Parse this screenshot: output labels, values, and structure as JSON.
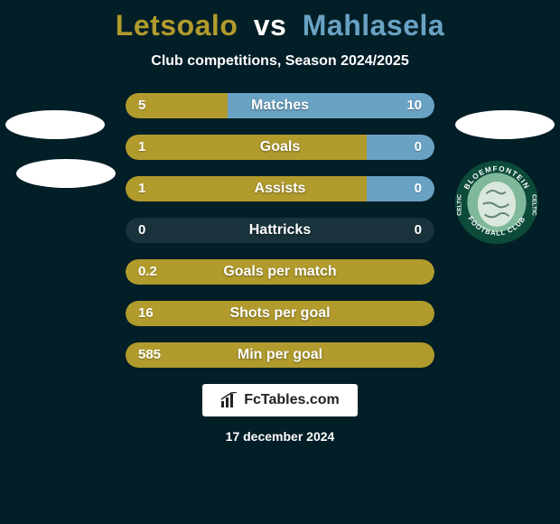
{
  "colors": {
    "background": "#021e26",
    "left": "#b19b2d",
    "right": "#6aa2c4",
    "neutral_bar": "rgba(60,80,95,0.4)",
    "white": "#ffffff",
    "watermark_text": "#222222"
  },
  "title": {
    "player1": "Letsoalo",
    "vs": "vs",
    "player2": "Mahlasela"
  },
  "subtitle": "Club competitions, Season 2024/2025",
  "badge": {
    "outer_text_top": "BLOEMFONTEIN",
    "outer_text_bottom": "FOOTBALL CLUB",
    "side_text": "CELTIC",
    "ring_color": "#0c4a3a",
    "inner_color": "#7fb89a"
  },
  "stats": [
    {
      "label": "Matches",
      "left_val": "5",
      "right_val": "10",
      "left_pct": 33,
      "right_pct": 67,
      "mode": "split"
    },
    {
      "label": "Goals",
      "left_val": "1",
      "right_val": "0",
      "left_pct": 78,
      "right_pct": 22,
      "mode": "split"
    },
    {
      "label": "Assists",
      "left_val": "1",
      "right_val": "0",
      "left_pct": 78,
      "right_pct": 22,
      "mode": "split"
    },
    {
      "label": "Hattricks",
      "left_val": "0",
      "right_val": "0",
      "left_pct": 0,
      "right_pct": 0,
      "mode": "neutral"
    },
    {
      "label": "Goals per match",
      "left_val": "0.2",
      "right_val": "",
      "left_pct": 100,
      "right_pct": 0,
      "mode": "left_full"
    },
    {
      "label": "Shots per goal",
      "left_val": "16",
      "right_val": "",
      "left_pct": 100,
      "right_pct": 0,
      "mode": "left_full"
    },
    {
      "label": "Min per goal",
      "left_val": "585",
      "right_val": "",
      "left_pct": 100,
      "right_pct": 0,
      "mode": "left_full"
    }
  ],
  "watermark": {
    "text": "FcTables.com"
  },
  "date": "17 december 2024"
}
